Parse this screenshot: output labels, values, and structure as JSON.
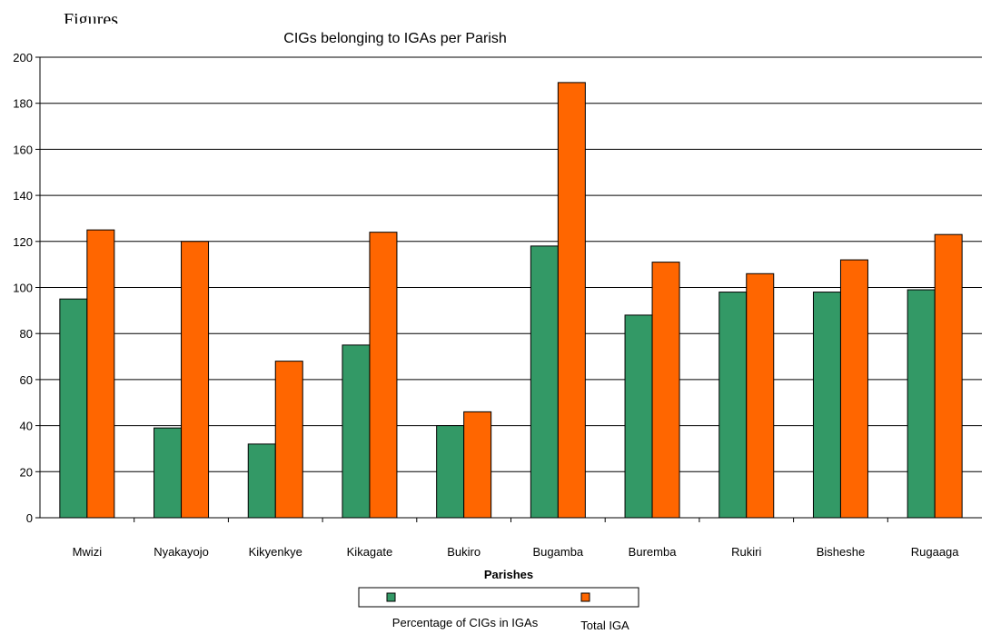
{
  "page_heading": "Figures",
  "chart_data": {
    "type": "bar",
    "title": "CIGs belonging to IGAs per Parish",
    "xlabel": "Parishes",
    "ylabel": "",
    "ylim": [
      0,
      200
    ],
    "yticks": [
      0,
      20,
      40,
      60,
      80,
      100,
      120,
      140,
      160,
      180,
      200
    ],
    "grid": true,
    "legend_position": "bottom",
    "categories": [
      "Mwizi",
      "Nyakayojo",
      "Kikyenkye",
      "Kikagate",
      "Bukiro",
      "Bugamba",
      "Buremba",
      "Rukiri",
      "Bisheshe",
      "Rugaaga"
    ],
    "series": [
      {
        "name": "Percentage of CIGs in IGAs",
        "color": "#339966",
        "values": [
          95,
          39,
          32,
          75,
          40,
          118,
          88,
          98,
          98,
          99
        ]
      },
      {
        "name": "Total IGA",
        "color": "#FF6600",
        "values": [
          125,
          120,
          68,
          124,
          46,
          189,
          111,
          106,
          112,
          123
        ]
      }
    ]
  }
}
